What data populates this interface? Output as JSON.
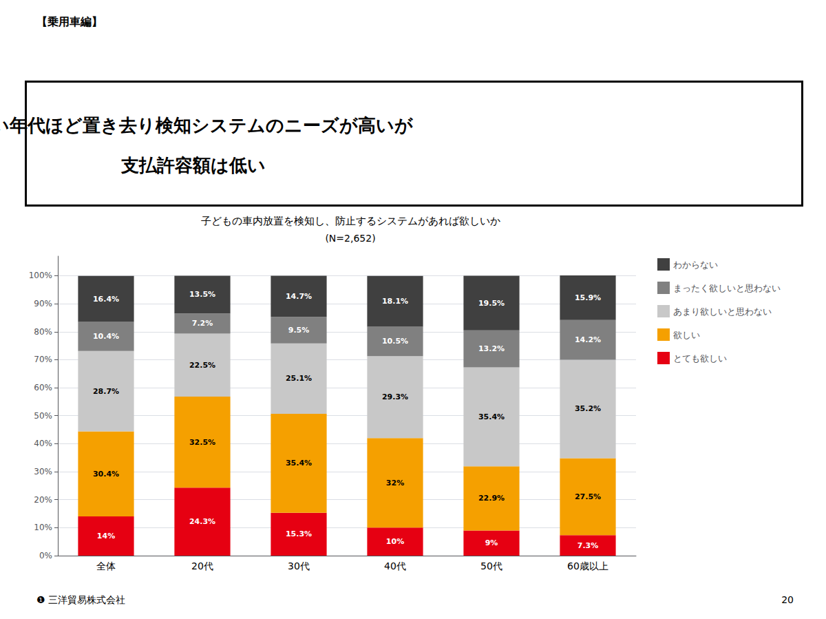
{
  "chart_data": {
    "type": "bar",
    "stacked": true,
    "title": "若い年代ほど置き去り検知システムのニーズが高いが\n支払許容額は低い",
    "subtitle": "子どもの車内放置を検知し、防止するシステムがあれば欲しいか",
    "annotations": [
      "(N=2,652)",
      "【乗用車編】",
      "❶ 三洋貿易株式会社",
      "20"
    ],
    "categories": [
      "全体",
      "20代",
      "30代",
      "40代",
      "50代",
      "60歳以上"
    ],
    "series": [
      {
        "name": "とても欲しい",
        "color": "#e60012",
        "values": [
          14.0,
          24.3,
          15.3,
          10.0,
          9.0,
          7.3
        ],
        "value_labels": [
          "14%",
          "24.3%",
          "15.3%",
          "10%",
          "9%",
          "7.3%"
        ]
      },
      {
        "name": "欲しい",
        "color": "#f5a000",
        "values": [
          30.4,
          32.5,
          35.4,
          32.0,
          22.9,
          27.5
        ],
        "value_labels": [
          "30.4%",
          "32.5%",
          "35.4%",
          "32%",
          "22.9%",
          "27.5%"
        ]
      },
      {
        "name": "あまり欲しいと思わない",
        "color": "#c8c8c8",
        "values": [
          28.7,
          22.5,
          25.1,
          29.3,
          35.4,
          35.2
        ],
        "value_labels": [
          "28.7%",
          "22.5%",
          "25.1%",
          "29.3%",
          "35.4%",
          "35.2%"
        ]
      },
      {
        "name": "まったく欲しいと思わない",
        "color": "#808080",
        "values": [
          10.4,
          7.2,
          9.5,
          10.5,
          13.2,
          14.2
        ],
        "value_labels": [
          "10.4%",
          "7.2%",
          "9.5%",
          "10.5%",
          "13.2%",
          "14.2%"
        ]
      },
      {
        "name": "わからない",
        "color": "#404040",
        "values": [
          16.4,
          13.5,
          14.7,
          18.1,
          19.5,
          15.9
        ],
        "value_labels": [
          "16.4%",
          "13.5%",
          "14.7%",
          "18.1%",
          "19.5%",
          "15.9%"
        ]
      }
    ],
    "ylim": [
      0,
      107
    ],
    "yticks": [
      {
        "value": 0,
        "label": "0%"
      },
      {
        "value": 10,
        "label": "10%"
      },
      {
        "value": 20,
        "label": "20%"
      },
      {
        "value": 30,
        "label": "30%"
      },
      {
        "value": 40,
        "label": "40%"
      },
      {
        "value": 50,
        "label": "50%"
      },
      {
        "value": 60,
        "label": "60%"
      },
      {
        "value": 70,
        "label": "70%"
      },
      {
        "value": 80,
        "label": "80%"
      },
      {
        "value": 90,
        "label": "90%"
      },
      {
        "value": 100,
        "label": "100%"
      }
    ],
    "grid": true,
    "legend": "right",
    "data_labels": true
  }
}
